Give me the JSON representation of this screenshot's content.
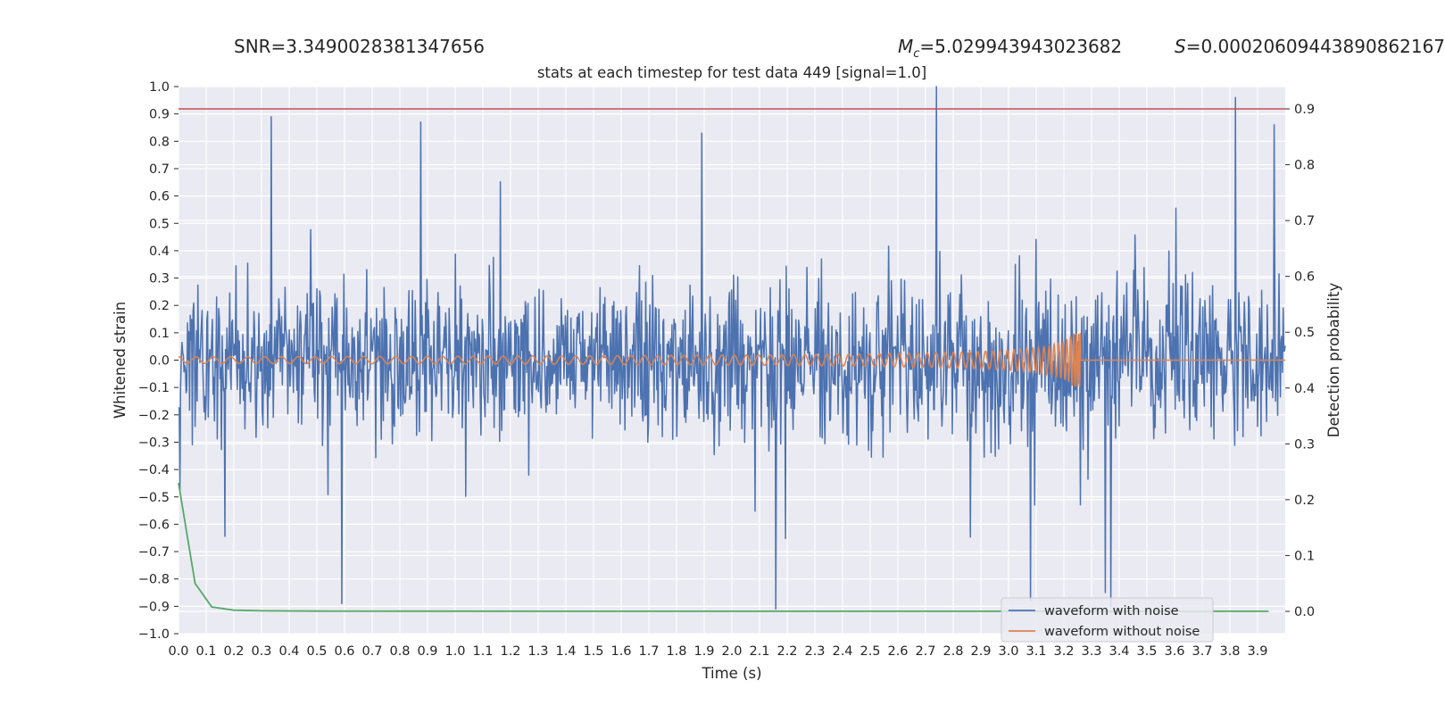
{
  "header": {
    "snr_label": "SNR=3.3490028381347656",
    "mc_symbol": "M",
    "mc_sub": "c",
    "mc_value": "=5.029943943023682",
    "s_symbol": "S",
    "s_value": "=0.00020609443890862167"
  },
  "chart_data": {
    "type": "line",
    "title": "stats at each timestep for test data 449 [signal=1.0]",
    "xlabel": "Time (s)",
    "ylabel": "Whitened strain",
    "y2label": "Detection probability",
    "xlim": [
      0.0,
      4.0
    ],
    "ylim": [
      -1.0,
      1.0
    ],
    "y2lim": [
      -0.04,
      0.94
    ],
    "xticks": [
      "0.0",
      "0.1",
      "0.2",
      "0.3",
      "0.4",
      "0.5",
      "0.6",
      "0.7",
      "0.8",
      "0.9",
      "1.0",
      "1.1",
      "1.2",
      "1.3",
      "1.4",
      "1.5",
      "1.6",
      "1.7",
      "1.8",
      "1.9",
      "2.0",
      "2.1",
      "2.2",
      "2.3",
      "2.4",
      "2.5",
      "2.6",
      "2.7",
      "2.8",
      "2.9",
      "3.0",
      "3.1",
      "3.2",
      "3.3",
      "3.4",
      "3.5",
      "3.6",
      "3.7",
      "3.8",
      "3.9"
    ],
    "yticks": [
      "1.0",
      "0.9",
      "0.8",
      "0.7",
      "0.6",
      "0.5",
      "0.4",
      "0.3",
      "0.2",
      "0.1",
      "0.0",
      "−0.1",
      "−0.2",
      "−0.3",
      "−0.4",
      "−0.5",
      "−0.6",
      "−0.7",
      "−0.8",
      "−0.9",
      "−1.0"
    ],
    "y2ticks": [
      "0.9",
      "0.8",
      "0.7",
      "0.6",
      "0.5",
      "0.4",
      "0.3",
      "0.2",
      "0.1",
      "0.0"
    ],
    "series": [
      {
        "name": "waveform with noise",
        "color": "#4c72b0",
        "description": "dense noisy whitened strain between about -0.95 and 1.0",
        "spikes": [
          {
            "x": 2.74,
            "y": 1.0
          },
          {
            "x": 3.82,
            "y": 0.96
          },
          {
            "x": 0.335,
            "y": 0.89
          },
          {
            "x": 0.875,
            "y": 0.87
          },
          {
            "x": 3.96,
            "y": 0.86
          },
          {
            "x": 1.89,
            "y": 0.83
          },
          {
            "x": 2.16,
            "y": -0.91
          },
          {
            "x": 3.37,
            "y": -0.9
          },
          {
            "x": 0.59,
            "y": -0.89
          },
          {
            "x": 3.08,
            "y": -0.88
          },
          {
            "x": 3.35,
            "y": -0.85
          }
        ]
      },
      {
        "name": "waveform without noise",
        "color": "#dd8452",
        "description": "chirp with growing amplitude ending near t=3.26 s",
        "merger_time": 3.26,
        "peak_amplitude": 0.1
      },
      {
        "name": "detection probability",
        "color": "#55a868",
        "axis": "y2",
        "x": [
          0.0,
          0.06,
          0.12,
          0.2,
          0.3,
          0.5,
          1.0,
          2.0,
          3.0,
          3.94
        ],
        "values": [
          0.23,
          0.05,
          0.008,
          0.002,
          0.001,
          0.0005,
          0.0003,
          0.0002,
          0.0002,
          0.0002
        ]
      }
    ],
    "threshold": {
      "y2": 0.9,
      "color": "#c44e52"
    },
    "legend": {
      "position": "bottom-right",
      "entries": [
        {
          "label": "waveform with noise",
          "color": "#4c72b0"
        },
        {
          "label": "waveform without noise",
          "color": "#dd8452"
        }
      ]
    }
  }
}
